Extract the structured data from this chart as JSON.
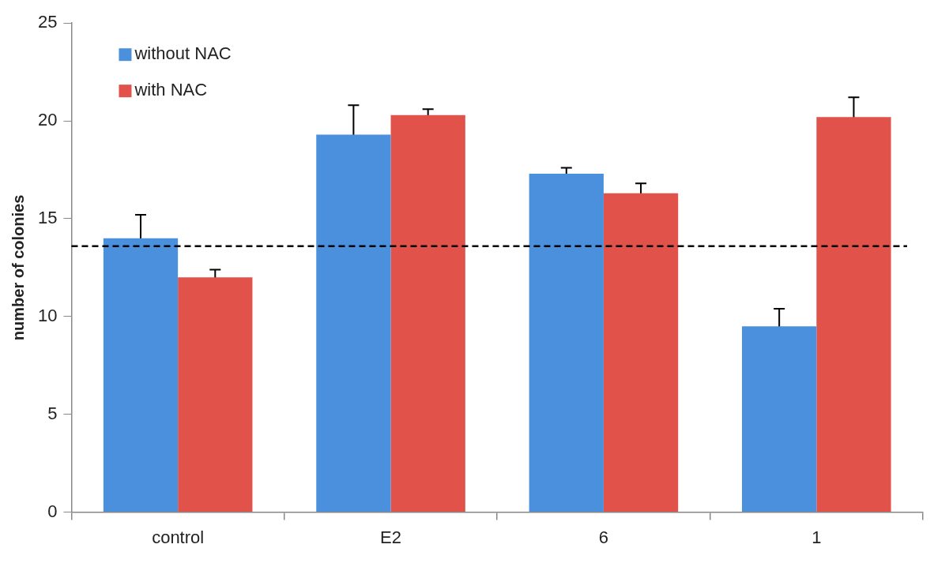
{
  "chart_data": {
    "type": "bar",
    "ylabel": "number of colonies",
    "categories": [
      "control",
      "E2",
      "6",
      "1"
    ],
    "series": [
      {
        "name": "without NAC",
        "color": "#4a90dc",
        "values": [
          14.0,
          19.3,
          17.3,
          9.5
        ],
        "errors": [
          1.2,
          1.5,
          0.3,
          0.9
        ]
      },
      {
        "name": "with NAC",
        "color": "#e0524a",
        "values": [
          12.0,
          20.3,
          16.3,
          20.2
        ],
        "errors": [
          0.4,
          0.3,
          0.5,
          1.0
        ]
      }
    ],
    "ylim": [
      0,
      25
    ],
    "yticks": [
      0,
      5,
      10,
      15,
      20,
      25
    ],
    "grid": false,
    "legend": "top left",
    "ref_lines": [
      {
        "axis": "y",
        "value": 13.6,
        "color": "#000000",
        "line_style": "dashed"
      }
    ]
  }
}
